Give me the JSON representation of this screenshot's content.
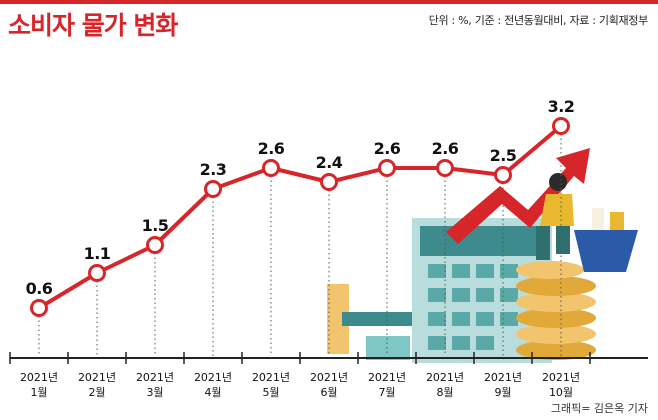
{
  "header": {
    "title": "소비자 물가 변화",
    "source_note": "단위 : %, 기준 : 전년동월대비, 자료 : 기획재정부"
  },
  "credit": "그래픽= 김은옥 기자",
  "chart_data": {
    "type": "line",
    "title": "소비자 물가 변화",
    "unit": "%",
    "categories": [
      [
        "2021년",
        "1월"
      ],
      [
        "2021년",
        "2월"
      ],
      [
        "2021년",
        "3월"
      ],
      [
        "2021년",
        "4월"
      ],
      [
        "2021년",
        "5월"
      ],
      [
        "2021년",
        "6월"
      ],
      [
        "2021년",
        "7월"
      ],
      [
        "2021년",
        "8월"
      ],
      [
        "2021년",
        "9월"
      ],
      [
        "2021년",
        "10월"
      ]
    ],
    "series": [
      {
        "values": [
          0.6,
          1.1,
          1.5,
          2.3,
          2.6,
          2.4,
          2.6,
          2.6,
          2.5,
          3.2
        ],
        "labels": [
          "0.6",
          "1.1",
          "1.5",
          "2.3",
          "2.6",
          "2.4",
          "2.6",
          "2.6",
          "2.5",
          "3.2"
        ]
      }
    ],
    "ylim": [
      0,
      3.2
    ],
    "grid": false,
    "colors": {
      "line": "#d7262a",
      "marker_fill": "#ffffff",
      "title": "#d7262a"
    }
  }
}
